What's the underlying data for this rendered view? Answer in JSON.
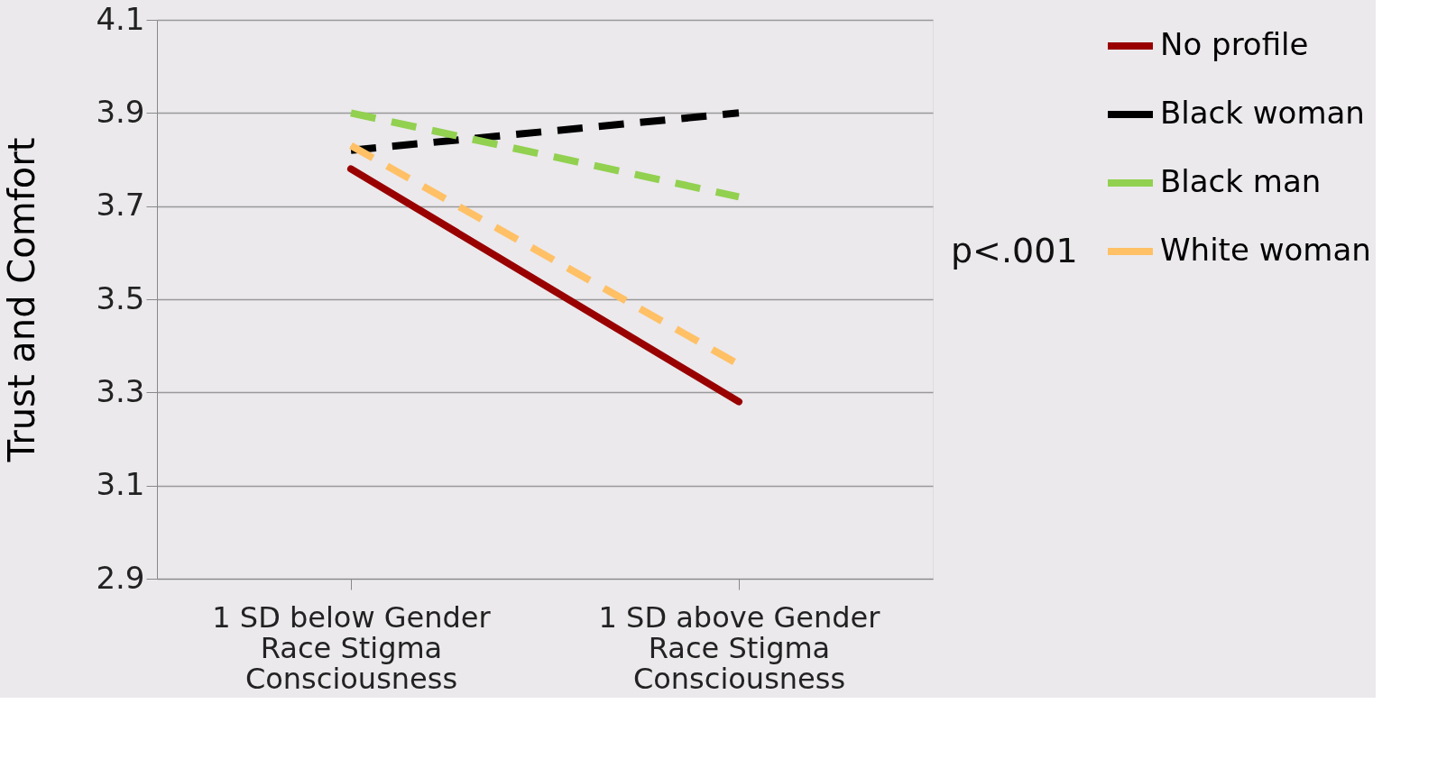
{
  "chart_data": {
    "type": "line",
    "ylabel": "Trust and Comfort",
    "categories": [
      "1 SD below Gender Race Stigma Consciousness",
      "1 SD above Gender Race Stigma Consciousness"
    ],
    "series": [
      {
        "name": "No profile",
        "color": "#990000",
        "values": [
          3.78,
          3.28
        ],
        "line_style": "solid"
      },
      {
        "name": "Black woman",
        "color": "#000000",
        "values": [
          3.82,
          3.9
        ],
        "line_style": "dashed"
      },
      {
        "name": "Black man",
        "color": "#92d050",
        "values": [
          3.9,
          3.72
        ],
        "line_style": "dashed"
      },
      {
        "name": "White woman",
        "color": "#ffc066",
        "values": [
          3.83,
          3.36
        ],
        "line_style": "dashed"
      }
    ],
    "ylim": [
      2.9,
      4.1
    ],
    "yticks": [
      2.9,
      3.1,
      3.3,
      3.5,
      3.7,
      3.9,
      4.1
    ],
    "grid": "y",
    "legend": "right",
    "marker": "none",
    "annotations": [
      "p<.001"
    ]
  }
}
